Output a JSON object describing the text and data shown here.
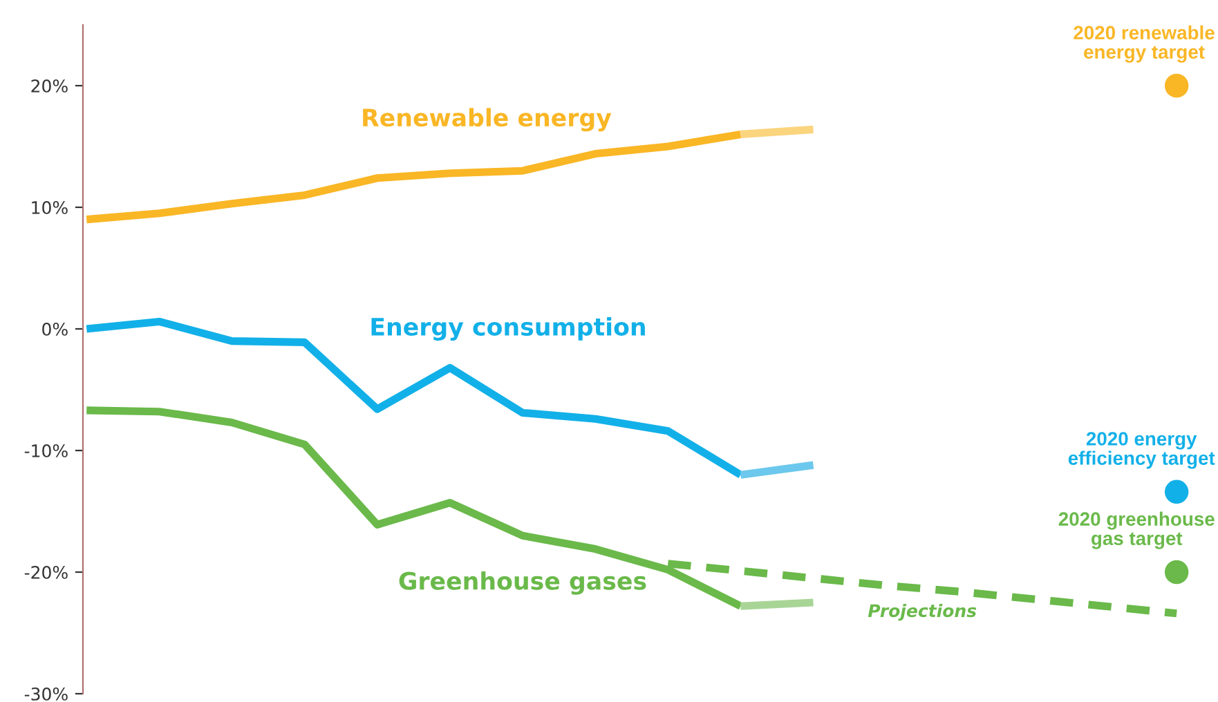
{
  "chart_data": {
    "type": "line",
    "categories": [
      null,
      null,
      null,
      null,
      null,
      null,
      null,
      null,
      null,
      null,
      null,
      null,
      null,
      null,
      null,
      null
    ],
    "ylim": [
      -30,
      25
    ],
    "yticks": [
      {
        "value": 20,
        "label": "20%"
      },
      {
        "value": 10,
        "label": "10%"
      },
      {
        "value": 0,
        "label": "0%"
      },
      {
        "value": -10,
        "label": "-10%"
      },
      {
        "value": -20,
        "label": "-20%"
      },
      {
        "value": -30,
        "label": "-30%"
      }
    ],
    "tick_labels": "y",
    "marker": "none",
    "line_style": "solid",
    "series": [
      {
        "name": "Renewable energy",
        "color": "#f9b625",
        "values": [
          9.0,
          9.5,
          10.3,
          11.0,
          12.4,
          12.8,
          13.0,
          14.4,
          15.0,
          16.0,
          null,
          null,
          null,
          null,
          null,
          null
        ]
      },
      {
        "color": "#fbd47e",
        "values": [
          null,
          null,
          null,
          null,
          null,
          null,
          null,
          null,
          null,
          16.0,
          16.4,
          null,
          null,
          null,
          null,
          null
        ]
      },
      {
        "name": "Energy consumption",
        "color": "#12b0e8",
        "values": [
          0.0,
          0.6,
          -1.0,
          -1.1,
          -6.6,
          -3.2,
          -6.9,
          -7.4,
          -8.4,
          -12.0,
          null,
          null,
          null,
          null,
          null,
          null
        ]
      },
      {
        "color": "#6cc8ec",
        "values": [
          null,
          null,
          null,
          null,
          null,
          null,
          null,
          null,
          null,
          -12.0,
          -11.2,
          null,
          null,
          null,
          null,
          null
        ]
      },
      {
        "name": "Greenhouse gases",
        "color": "#6ab94a",
        "values": [
          -6.7,
          -6.8,
          -7.7,
          -9.5,
          -16.1,
          -14.3,
          -17.0,
          -18.1,
          -19.8,
          -22.8,
          null,
          null,
          null,
          null,
          null,
          null
        ]
      },
      {
        "color": "#a8d596",
        "values": [
          null,
          null,
          null,
          null,
          null,
          null,
          null,
          null,
          null,
          -22.8,
          -22.5,
          null,
          null,
          null,
          null,
          null
        ]
      },
      {
        "name": "Projections",
        "color": "#6ab94a",
        "line_style": "dashed",
        "values": [
          null,
          null,
          null,
          null,
          null,
          null,
          null,
          null,
          -19.3,
          -19.9,
          -20.5,
          -21.1,
          -21.6,
          -22.2,
          -22.8,
          -23.4
        ]
      },
      {
        "type": "scatter",
        "marker": "circle",
        "color": "#f9b625",
        "values": [
          null,
          null,
          null,
          null,
          null,
          null,
          null,
          null,
          null,
          null,
          null,
          null,
          null,
          null,
          null,
          20
        ]
      },
      {
        "type": "scatter",
        "marker": "circle",
        "color": "#12b0e8",
        "values": [
          null,
          null,
          null,
          null,
          null,
          null,
          null,
          null,
          null,
          null,
          null,
          null,
          null,
          null,
          null,
          -13.4
        ]
      },
      {
        "type": "scatter",
        "marker": "circle",
        "color": "#6ab94a",
        "values": [
          null,
          null,
          null,
          null,
          null,
          null,
          null,
          null,
          null,
          null,
          null,
          null,
          null,
          null,
          null,
          -20
        ]
      }
    ],
    "annotations": [
      "2020 renewable\nenergy target",
      "2020 energy\nefficiency target",
      "2020 greenhouse\ngas target"
    ]
  }
}
